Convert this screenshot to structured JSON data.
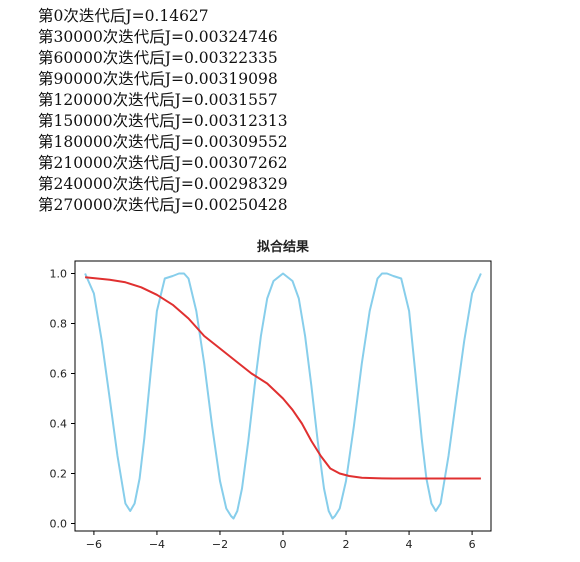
{
  "log_lines": [
    "第0次迭代后J=0.14627",
    "第30000次迭代后J=0.00324746",
    "第60000次迭代后J=0.00322335",
    "第90000次迭代后J=0.00319098",
    "第120000次迭代后J=0.0031557",
    "第150000次迭代后J=0.00312313",
    "第180000次迭代后J=0.00309552",
    "第210000次迭代后J=0.00307262",
    "第240000次迭代后J=0.00298329",
    "第270000次迭代后J=0.00250428"
  ],
  "chart_data": {
    "type": "line",
    "title": "拟合结果",
    "xlabel": "",
    "ylabel": "",
    "xlim": [
      -6.6,
      6.6
    ],
    "ylim": [
      -0.03,
      1.05
    ],
    "xticks": [
      -6,
      -4,
      -2,
      0,
      2,
      4,
      6
    ],
    "yticks": [
      0.0,
      0.2,
      0.4,
      0.6,
      0.8,
      1.0
    ],
    "grid": false,
    "series": [
      {
        "color": "#87CEEB",
        "x": [
          -6.28,
          -6.0,
          -5.75,
          -5.5,
          -5.25,
          -5.0,
          -4.85,
          -4.71,
          -4.55,
          -4.4,
          -4.2,
          -4.0,
          -3.75,
          -3.5,
          -3.3,
          -3.14,
          -3.0,
          -2.75,
          -2.5,
          -2.25,
          -2.0,
          -1.8,
          -1.65,
          -1.57,
          -1.45,
          -1.3,
          -1.1,
          -0.9,
          -0.7,
          -0.5,
          -0.3,
          0.0,
          0.3,
          0.5,
          0.7,
          0.9,
          1.1,
          1.3,
          1.45,
          1.57,
          1.65,
          1.8,
          2.0,
          2.25,
          2.5,
          2.75,
          3.0,
          3.14,
          3.3,
          3.5,
          3.75,
          4.0,
          4.2,
          4.4,
          4.55,
          4.71,
          4.85,
          5.0,
          5.25,
          5.5,
          5.75,
          6.0,
          6.28
        ],
        "y": [
          1.0,
          0.92,
          0.73,
          0.5,
          0.27,
          0.08,
          0.05,
          0.08,
          0.18,
          0.34,
          0.6,
          0.85,
          0.98,
          0.99,
          1.0,
          1.0,
          0.98,
          0.85,
          0.64,
          0.39,
          0.17,
          0.06,
          0.03,
          0.02,
          0.05,
          0.14,
          0.33,
          0.55,
          0.75,
          0.9,
          0.97,
          1.0,
          0.97,
          0.9,
          0.75,
          0.55,
          0.33,
          0.14,
          0.05,
          0.02,
          0.03,
          0.06,
          0.17,
          0.39,
          0.64,
          0.85,
          0.98,
          1.0,
          1.0,
          0.99,
          0.98,
          0.85,
          0.6,
          0.34,
          0.18,
          0.08,
          0.05,
          0.08,
          0.27,
          0.5,
          0.73,
          0.92,
          1.0
        ]
      },
      {
        "color": "#E03030",
        "x": [
          -6.28,
          -5.5,
          -5.0,
          -4.5,
          -4.0,
          -3.5,
          -3.0,
          -2.5,
          -2.0,
          -1.5,
          -1.0,
          -0.5,
          0.0,
          0.3,
          0.6,
          0.9,
          1.2,
          1.5,
          1.8,
          2.1,
          2.5,
          3.0,
          3.5,
          4.0,
          4.5,
          5.0,
          5.5,
          6.28
        ],
        "y": [
          0.985,
          0.975,
          0.965,
          0.945,
          0.915,
          0.875,
          0.82,
          0.75,
          0.7,
          0.65,
          0.6,
          0.56,
          0.5,
          0.455,
          0.4,
          0.33,
          0.27,
          0.22,
          0.2,
          0.19,
          0.183,
          0.181,
          0.18,
          0.18,
          0.18,
          0.18,
          0.18,
          0.18
        ]
      }
    ]
  }
}
